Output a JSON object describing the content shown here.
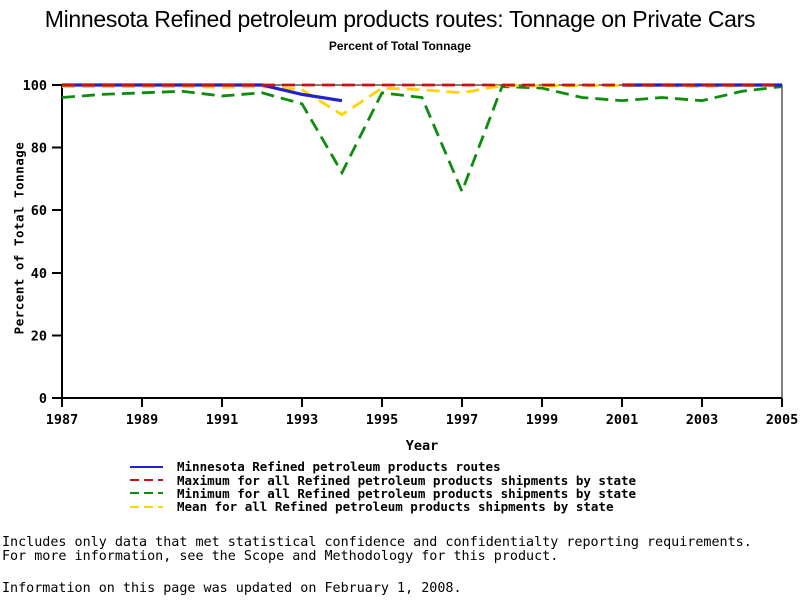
{
  "title": "Minnesota Refined petroleum products routes: Tonnage on Private Cars",
  "subtitle": "Percent of Total Tonnage",
  "chart_data": {
    "type": "line",
    "title": "Minnesota Refined petroleum products routes: Tonnage on Private Cars",
    "subtitle": "Percent of Total Tonnage",
    "xlabel": "Year",
    "ylabel": "Percent of Total Tonnage",
    "x": [
      1987,
      1988,
      1989,
      1990,
      1991,
      1992,
      1993,
      1994,
      1995,
      1996,
      1997,
      1998,
      1999,
      2000,
      2001,
      2002,
      2003,
      2004,
      2005
    ],
    "xlim": [
      1987,
      2005
    ],
    "ylim": [
      0,
      100
    ],
    "xticks": [
      1987,
      1989,
      1991,
      1993,
      1995,
      1997,
      1999,
      2001,
      2003,
      2005
    ],
    "yticks": [
      0,
      20,
      40,
      60,
      80,
      100
    ],
    "grid": false,
    "legend_position": "bottom",
    "series": [
      {
        "name": "Minnesota Refined petroleum products routes",
        "color": "#2222cc",
        "dash": "solid",
        "values": [
          100,
          100,
          100,
          100,
          100,
          100,
          97,
          95,
          null,
          null,
          null,
          null,
          null,
          null,
          100,
          100,
          100,
          100,
          100
        ]
      },
      {
        "name": "Maximum for all Refined petroleum products shipments by state",
        "color": "#cc1111",
        "dash": "dashed",
        "values": [
          100,
          100,
          100,
          100,
          100,
          100,
          100,
          100,
          100,
          100,
          100,
          100,
          100,
          100,
          100,
          100,
          100,
          100,
          100
        ]
      },
      {
        "name": "Minimum for all Refined petroleum products shipments by state",
        "color": "#0e8c0e",
        "dash": "dashed",
        "values": [
          96,
          97,
          97.5,
          98,
          96.5,
          97.5,
          94,
          72,
          97.5,
          96,
          66,
          99.5,
          99,
          96,
          95,
          96,
          95,
          98,
          99.5
        ]
      },
      {
        "name": "Mean for all Refined petroleum products shipments by state",
        "color": "#ffd400",
        "dash": "dashed",
        "values": [
          99.5,
          99.5,
          99.5,
          99.5,
          99.3,
          99.5,
          98.5,
          90.5,
          99,
          98.5,
          97.5,
          99.8,
          99.8,
          99.8,
          99.8,
          99.8,
          99.5,
          99.8,
          100
        ]
      }
    ]
  },
  "footnotes": {
    "line1": "Includes only data that met statistical confidence and confidentialty reporting requirements.",
    "line2": "For more information, see the Scope and Methodology for this product.",
    "line3": "Information on this page was updated on February 1, 2008."
  }
}
